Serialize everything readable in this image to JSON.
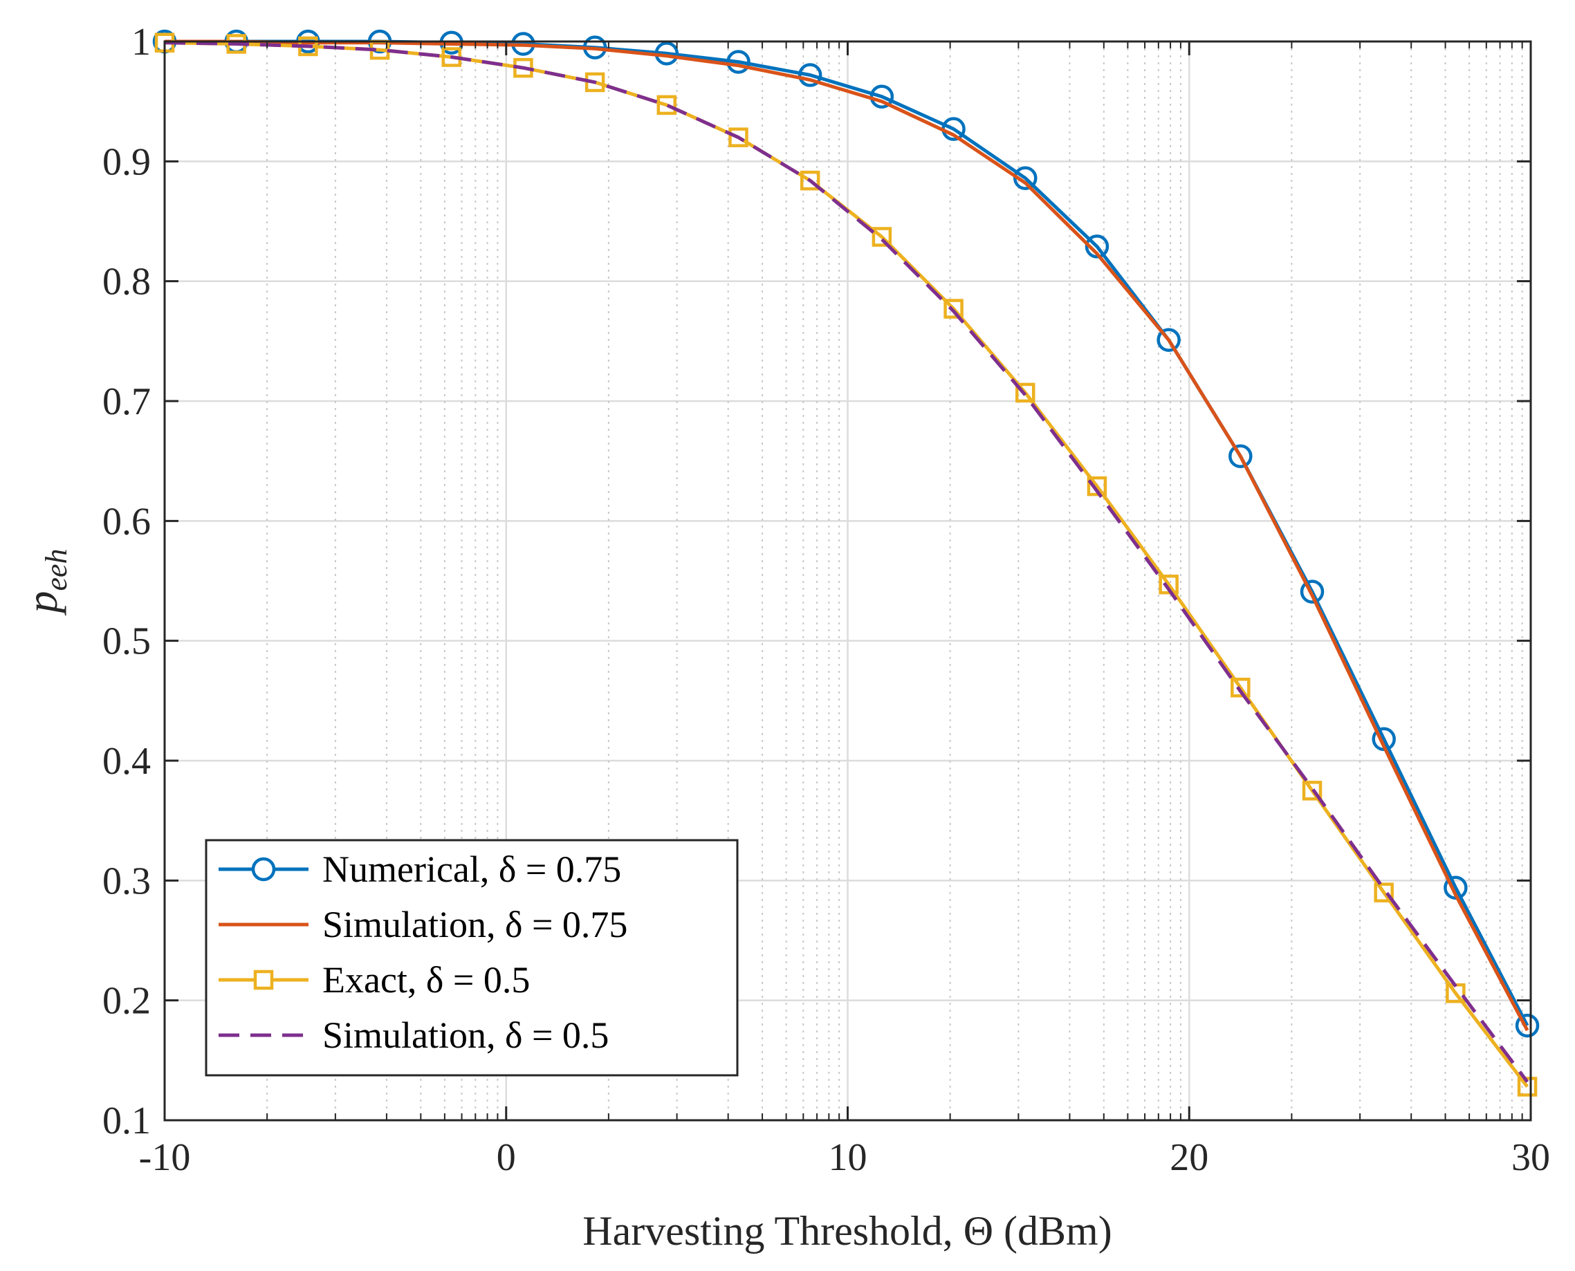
{
  "chart_data": {
    "type": "line",
    "xlabel": "Harvesting Threshold,  Θ (dBm)",
    "ylabel": "p",
    "ylabel_sub": "eeh",
    "xlim": [
      -10,
      30
    ],
    "ylim": [
      0.1,
      1.0
    ],
    "x_ticks": [
      -10,
      0,
      10,
      20,
      30
    ],
    "x_tick_labels": [
      "-10",
      "0",
      "10",
      "20",
      "30"
    ],
    "y_ticks": [
      0.1,
      0.2,
      0.3,
      0.4,
      0.5,
      0.6,
      0.7,
      0.8,
      0.9,
      1.0
    ],
    "y_tick_labels": [
      "0.1",
      "0.2",
      "0.3",
      "0.4",
      "0.5",
      "0.6",
      "0.7",
      "0.8",
      "0.9",
      "1"
    ],
    "grid": true,
    "legend_position": "bottom-left",
    "series": [
      {
        "name": "Numerical, δ = 0.75",
        "color": "#0072BD",
        "style": "solid",
        "marker": "circle",
        "x": [
          -10,
          -7.9,
          -5.8,
          -3.7,
          -1.6,
          0.5,
          2.6,
          4.7,
          6.8,
          8.9,
          11,
          13.1,
          15.2,
          17.3,
          19.4,
          21.5,
          23.6,
          25.7,
          27.8,
          29.9
        ],
        "y": [
          1.0,
          1.0,
          1.0,
          1.0,
          0.999,
          0.998,
          0.995,
          0.99,
          0.983,
          0.972,
          0.954,
          0.927,
          0.886,
          0.829,
          0.751,
          0.654,
          0.541,
          0.418,
          0.294,
          0.179
        ]
      },
      {
        "name": "Simulation, δ = 0.75",
        "color": "#D95319",
        "style": "solid",
        "marker": "none",
        "x": [
          -10,
          -7.9,
          -5.8,
          -3.7,
          -1.6,
          0.5,
          2.6,
          4.7,
          6.8,
          8.9,
          11,
          13.1,
          15.2,
          17.3,
          19.4,
          21.5,
          23.6,
          25.7,
          27.8,
          29.9
        ],
        "y": [
          1.0,
          1.0,
          0.999,
          0.999,
          0.998,
          0.997,
          0.994,
          0.988,
          0.98,
          0.968,
          0.95,
          0.922,
          0.882,
          0.823,
          0.751,
          0.654,
          0.538,
          0.412,
          0.288,
          0.175
        ]
      },
      {
        "name": "Exact, δ = 0.5",
        "color": "#EDB120",
        "style": "solid",
        "marker": "square",
        "x": [
          -10,
          -7.9,
          -5.8,
          -3.7,
          -1.6,
          0.5,
          2.6,
          4.7,
          6.8,
          8.9,
          11,
          13.1,
          15.2,
          17.3,
          19.4,
          21.5,
          23.6,
          25.7,
          27.8,
          29.9
        ],
        "y": [
          0.999,
          0.998,
          0.996,
          0.993,
          0.987,
          0.978,
          0.966,
          0.947,
          0.92,
          0.884,
          0.837,
          0.777,
          0.707,
          0.629,
          0.547,
          0.461,
          0.375,
          0.29,
          0.206,
          0.128
        ]
      },
      {
        "name": "Simulation, δ = 0.5",
        "color": "#7E2F8E",
        "style": "dashed",
        "marker": "none",
        "x": [
          -10,
          -7.9,
          -5.8,
          -3.7,
          -1.6,
          0.5,
          2.6,
          4.7,
          6.8,
          8.9,
          11,
          13.1,
          15.2,
          17.3,
          19.4,
          21.5,
          23.6,
          25.7,
          27.8,
          29.9
        ],
        "y": [
          0.999,
          0.998,
          0.996,
          0.993,
          0.987,
          0.978,
          0.966,
          0.947,
          0.92,
          0.884,
          0.835,
          0.775,
          0.705,
          0.625,
          0.543,
          0.458,
          0.377,
          0.293,
          0.212,
          0.132
        ]
      }
    ]
  }
}
